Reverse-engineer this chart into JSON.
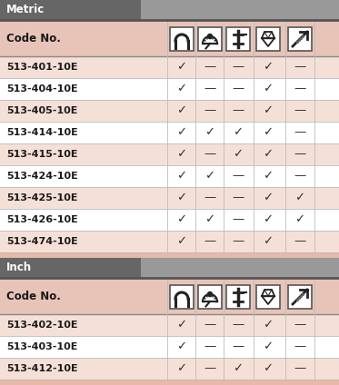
{
  "bg_color": "#e8b8a8",
  "header_bg": "#666666",
  "row_bg_pink": "#e8c4b8",
  "row_bg_light": "#f5e0d8",
  "text_color": "#1a1a1a",
  "metric_header": "Metric",
  "inch_header": "Inch",
  "col_header": "Code No.",
  "metric_rows": [
    [
      "513-401-10E",
      "✓",
      "—",
      "—",
      "✓",
      "—"
    ],
    [
      "513-404-10E",
      "✓",
      "—",
      "—",
      "✓",
      "—"
    ],
    [
      "513-405-10E",
      "✓",
      "—",
      "—",
      "✓",
      "—"
    ],
    [
      "513-414-10E",
      "✓",
      "✓",
      "✓",
      "✓",
      "—"
    ],
    [
      "513-415-10E",
      "✓",
      "—",
      "✓",
      "✓",
      "—"
    ],
    [
      "513-424-10E",
      "✓",
      "✓",
      "—",
      "✓",
      "—"
    ],
    [
      "513-425-10E",
      "✓",
      "—",
      "—",
      "✓",
      "✓"
    ],
    [
      "513-426-10E",
      "✓",
      "✓",
      "—",
      "✓",
      "✓"
    ],
    [
      "513-474-10E",
      "✓",
      "—",
      "—",
      "✓",
      "—"
    ]
  ],
  "inch_rows": [
    [
      "513-402-10E",
      "✓",
      "—",
      "—",
      "✓",
      "—"
    ],
    [
      "513-403-10E",
      "✓",
      "—",
      "—",
      "✓",
      "—"
    ],
    [
      "513-412-10E",
      "✓",
      "—",
      "✓",
      "✓",
      "—"
    ]
  ]
}
